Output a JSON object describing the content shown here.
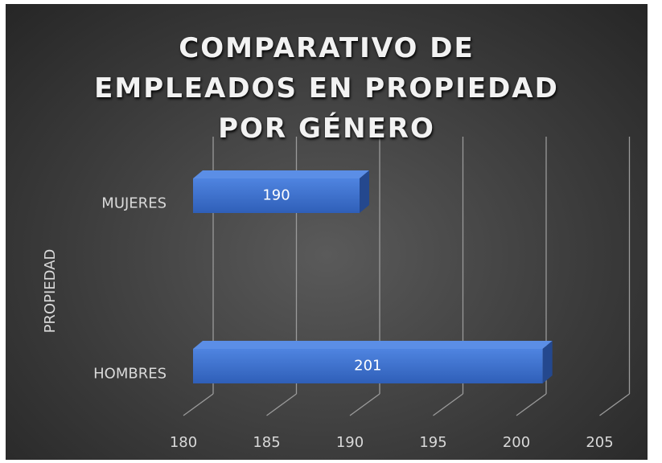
{
  "chart_data": {
    "type": "bar3d_horizontal",
    "title": "COMPARATIVO DE EMPLEADOS EN PROPIEDAD POR GÉNERO",
    "y_axis_label": "PROPIEDAD",
    "categories": [
      "MUJERES",
      "HOMBRES"
    ],
    "values": [
      190,
      201
    ],
    "color": "#4472c4",
    "xlim": [
      180,
      205
    ],
    "xticks": [
      180,
      185,
      190,
      195,
      200,
      205
    ],
    "grid": true
  }
}
